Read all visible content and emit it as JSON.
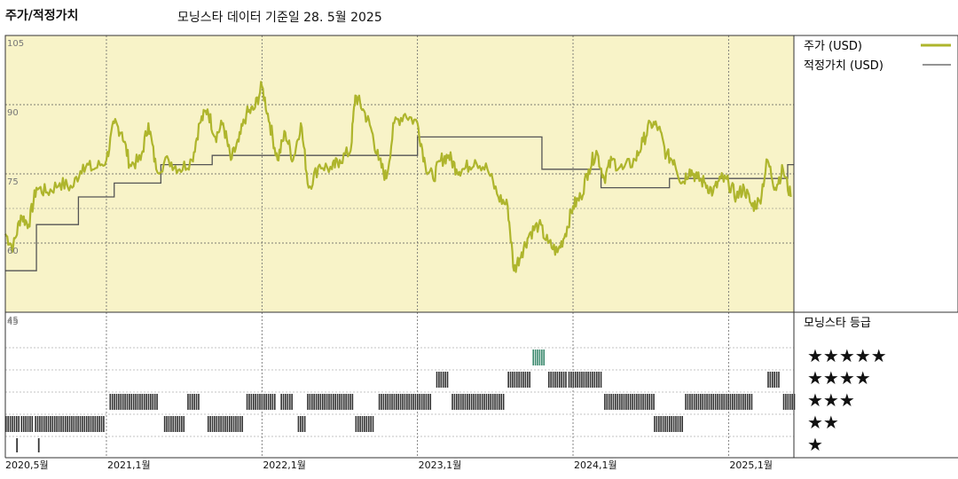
{
  "header": {
    "title": "주가/적정가치",
    "subtitle": "모닝스타 데이터 기준일 28. 5월 2025"
  },
  "legend": {
    "price": "주가 (USD)",
    "fair": "적정가치 (USD)",
    "rating_title": "모닝스타 등급"
  },
  "colors": {
    "panel_bg": "#f8f3c8",
    "price_line": "#aeb52c",
    "fair_line": "#555555",
    "rating_bar": "#333333",
    "rating_top": "#3c8a6e"
  },
  "chart_data": {
    "type": "line",
    "xlabel": "",
    "ylabel": "",
    "ylim": [
      45,
      105
    ],
    "x_range": [
      2020.35,
      2025.42
    ],
    "y_ticks": [
      {
        "v": 105,
        "label": "105"
      },
      {
        "v": 90,
        "label": "90"
      },
      {
        "v": 75,
        "label": "75"
      },
      {
        "v": 60,
        "label": "60"
      },
      {
        "v": 45,
        "label": "45"
      }
    ],
    "x_ticks": [
      {
        "x": 2020.35,
        "label": "2020,5월"
      },
      {
        "x": 2021.0,
        "label": "2021,1월"
      },
      {
        "x": 2022.0,
        "label": "2022,1월"
      },
      {
        "x": 2023.0,
        "label": "2023,1월"
      },
      {
        "x": 2024.0,
        "label": "2024,1월"
      },
      {
        "x": 2025.0,
        "label": "2025,1월"
      }
    ],
    "series": [
      {
        "name": "주가 (USD)",
        "points": [
          [
            2020.35,
            62
          ],
          [
            2020.4,
            59
          ],
          [
            2020.45,
            66
          ],
          [
            2020.5,
            64
          ],
          [
            2020.55,
            72
          ],
          [
            2020.62,
            71
          ],
          [
            2020.7,
            73
          ],
          [
            2020.78,
            72
          ],
          [
            2020.85,
            77
          ],
          [
            2020.92,
            76
          ],
          [
            2021.0,
            78
          ],
          [
            2021.05,
            86
          ],
          [
            2021.1,
            84
          ],
          [
            2021.15,
            77
          ],
          [
            2021.22,
            78
          ],
          [
            2021.27,
            86
          ],
          [
            2021.32,
            76
          ],
          [
            2021.4,
            78
          ],
          [
            2021.47,
            76
          ],
          [
            2021.55,
            78
          ],
          [
            2021.6,
            86
          ],
          [
            2021.65,
            89
          ],
          [
            2021.7,
            83
          ],
          [
            2021.75,
            86
          ],
          [
            2021.8,
            78
          ],
          [
            2021.85,
            82
          ],
          [
            2021.9,
            88
          ],
          [
            2021.95,
            89
          ],
          [
            2022.0,
            94
          ],
          [
            2022.05,
            86
          ],
          [
            2022.1,
            78
          ],
          [
            2022.15,
            84
          ],
          [
            2022.2,
            78
          ],
          [
            2022.25,
            86
          ],
          [
            2022.3,
            72
          ],
          [
            2022.37,
            77
          ],
          [
            2022.45,
            76
          ],
          [
            2022.5,
            78
          ],
          [
            2022.57,
            80
          ],
          [
            2022.6,
            92
          ],
          [
            2022.65,
            89
          ],
          [
            2022.7,
            85
          ],
          [
            2022.75,
            78
          ],
          [
            2022.8,
            74
          ],
          [
            2022.85,
            86
          ],
          [
            2022.92,
            88
          ],
          [
            2023.0,
            86
          ],
          [
            2023.05,
            77
          ],
          [
            2023.1,
            74
          ],
          [
            2023.15,
            78
          ],
          [
            2023.2,
            79
          ],
          [
            2023.25,
            76
          ],
          [
            2023.3,
            76
          ],
          [
            2023.37,
            78
          ],
          [
            2023.45,
            76
          ],
          [
            2023.52,
            70
          ],
          [
            2023.58,
            68
          ],
          [
            2023.62,
            54
          ],
          [
            2023.67,
            58
          ],
          [
            2023.72,
            62
          ],
          [
            2023.78,
            64
          ],
          [
            2023.84,
            60
          ],
          [
            2023.9,
            58
          ],
          [
            2023.95,
            62
          ],
          [
            2024.0,
            68
          ],
          [
            2024.05,
            70
          ],
          [
            2024.1,
            76
          ],
          [
            2024.15,
            80
          ],
          [
            2024.2,
            74
          ],
          [
            2024.25,
            78
          ],
          [
            2024.32,
            76
          ],
          [
            2024.4,
            78
          ],
          [
            2024.45,
            82
          ],
          [
            2024.5,
            86
          ],
          [
            2024.55,
            85
          ],
          [
            2024.6,
            79
          ],
          [
            2024.65,
            78
          ],
          [
            2024.7,
            73
          ],
          [
            2024.75,
            76
          ],
          [
            2024.8,
            74
          ],
          [
            2024.85,
            73
          ],
          [
            2024.9,
            71
          ],
          [
            2024.95,
            74
          ],
          [
            2025.0,
            73
          ],
          [
            2025.05,
            70
          ],
          [
            2025.1,
            72
          ],
          [
            2025.15,
            68
          ],
          [
            2025.2,
            69
          ],
          [
            2025.25,
            78
          ],
          [
            2025.3,
            72
          ],
          [
            2025.35,
            76
          ],
          [
            2025.4,
            70
          ]
        ]
      },
      {
        "name": "적정가치 (USD)",
        "points": [
          [
            2020.35,
            54
          ],
          [
            2020.55,
            54
          ],
          [
            2020.55,
            64
          ],
          [
            2020.82,
            64
          ],
          [
            2020.82,
            70
          ],
          [
            2021.05,
            70
          ],
          [
            2021.05,
            73
          ],
          [
            2021.35,
            73
          ],
          [
            2021.35,
            77
          ],
          [
            2021.68,
            77
          ],
          [
            2021.68,
            79
          ],
          [
            2023.0,
            79
          ],
          [
            2023.0,
            83
          ],
          [
            2023.8,
            83
          ],
          [
            2023.8,
            76
          ],
          [
            2024.18,
            76
          ],
          [
            2024.18,
            72
          ],
          [
            2024.62,
            72
          ],
          [
            2024.62,
            74
          ],
          [
            2025.38,
            74
          ],
          [
            2025.38,
            77
          ],
          [
            2025.42,
            77
          ]
        ]
      }
    ],
    "ratings": {
      "labels": [
        "★★★★★",
        "★★★★",
        "★★★",
        "★★",
        "★"
      ],
      "segments": [
        {
          "from": 2020.35,
          "to": 2020.44,
          "stars": 2
        },
        {
          "from": 2020.45,
          "to": 2020.52,
          "stars": 2
        },
        {
          "from": 2020.54,
          "to": 2020.99,
          "stars": 2
        },
        {
          "from": 2020.42,
          "to": 2020.43,
          "stars": 1
        },
        {
          "from": 2020.56,
          "to": 2020.57,
          "stars": 1
        },
        {
          "from": 2021.02,
          "to": 2021.33,
          "stars": 3
        },
        {
          "from": 2021.37,
          "to": 2021.5,
          "stars": 2
        },
        {
          "from": 2021.52,
          "to": 2021.6,
          "stars": 3
        },
        {
          "from": 2021.65,
          "to": 2021.88,
          "stars": 2
        },
        {
          "from": 2021.9,
          "to": 2022.08,
          "stars": 3
        },
        {
          "from": 2022.12,
          "to": 2022.2,
          "stars": 3
        },
        {
          "from": 2022.23,
          "to": 2022.28,
          "stars": 2
        },
        {
          "from": 2022.29,
          "to": 2022.58,
          "stars": 3
        },
        {
          "from": 2022.6,
          "to": 2022.72,
          "stars": 2
        },
        {
          "from": 2022.75,
          "to": 2023.08,
          "stars": 3
        },
        {
          "from": 2023.12,
          "to": 2023.2,
          "stars": 4
        },
        {
          "from": 2023.22,
          "to": 2023.55,
          "stars": 3
        },
        {
          "from": 2023.58,
          "to": 2023.72,
          "stars": 4
        },
        {
          "from": 2023.74,
          "to": 2023.81,
          "stars": 5
        },
        {
          "from": 2023.84,
          "to": 2023.95,
          "stars": 4
        },
        {
          "from": 2023.97,
          "to": 2024.18,
          "stars": 4
        },
        {
          "from": 2024.2,
          "to": 2024.52,
          "stars": 3
        },
        {
          "from": 2024.52,
          "to": 2024.7,
          "stars": 2
        },
        {
          "from": 2024.72,
          "to": 2025.15,
          "stars": 3
        },
        {
          "from": 2025.25,
          "to": 2025.33,
          "stars": 4
        },
        {
          "from": 2025.35,
          "to": 2025.42,
          "stars": 3
        }
      ]
    }
  }
}
